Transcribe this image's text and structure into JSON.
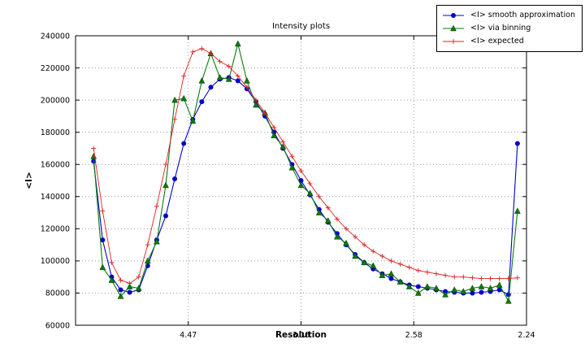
{
  "chart_data": {
    "type": "line",
    "title": "Intensity plots",
    "xlabel": "Resolution",
    "ylabel": "<I>",
    "grid": true,
    "legend_position": "top-right",
    "xlim": [
      0,
      0.2
    ],
    "ylim": [
      60000,
      240000
    ],
    "yticks": [
      {
        "value": 60000,
        "label": "60000"
      },
      {
        "value": 80000,
        "label": "80000"
      },
      {
        "value": 100000,
        "label": "100000"
      },
      {
        "value": 120000,
        "label": "120000"
      },
      {
        "value": 140000,
        "label": "140000"
      },
      {
        "value": 160000,
        "label": "160000"
      },
      {
        "value": 180000,
        "label": "180000"
      },
      {
        "value": 200000,
        "label": "200000"
      },
      {
        "value": 220000,
        "label": "220000"
      },
      {
        "value": 240000,
        "label": "240000"
      }
    ],
    "xticks": [
      {
        "pos": 0.05,
        "label": "4.47"
      },
      {
        "pos": 0.1,
        "label": "3.16"
      },
      {
        "pos": 0.15,
        "label": "2.58"
      },
      {
        "pos": 0.2,
        "label": "2.24"
      }
    ],
    "x": [
      0.008,
      0.012,
      0.016,
      0.02,
      0.024,
      0.028,
      0.032,
      0.036,
      0.04,
      0.044,
      0.048,
      0.052,
      0.056,
      0.06,
      0.064,
      0.068,
      0.072,
      0.076,
      0.08,
      0.084,
      0.088,
      0.092,
      0.096,
      0.1,
      0.104,
      0.108,
      0.112,
      0.116,
      0.12,
      0.124,
      0.128,
      0.132,
      0.136,
      0.14,
      0.144,
      0.148,
      0.152,
      0.156,
      0.16,
      0.164,
      0.168,
      0.172,
      0.176,
      0.18,
      0.184,
      0.188,
      0.192,
      0.196
    ],
    "series": [
      {
        "name": "<I> smooth approximation",
        "color": "#0000cc",
        "marker": "circle",
        "values": [
          162000,
          113000,
          90000,
          82000,
          80500,
          82000,
          97000,
          113000,
          128000,
          151000,
          173000,
          188000,
          199000,
          208000,
          213000,
          214000,
          212000,
          207000,
          199000,
          190000,
          180000,
          170000,
          160000,
          150000,
          141000,
          132000,
          124000,
          117000,
          110000,
          104000,
          99000,
          95000,
          92000,
          89000,
          87000,
          85000,
          84000,
          83000,
          82000,
          81000,
          80500,
          80000,
          80000,
          80500,
          81000,
          82000,
          79000,
          173000
        ]
      },
      {
        "name": "<I> via binning",
        "color": "#0b7a0b",
        "marker": "triangle",
        "values": [
          165000,
          96000,
          88000,
          78000,
          84000,
          83000,
          100000,
          112000,
          147000,
          200000,
          201000,
          187000,
          212000,
          229000,
          214000,
          213000,
          235000,
          212000,
          197000,
          192000,
          178000,
          171000,
          158000,
          147000,
          142000,
          130000,
          125000,
          115000,
          111000,
          103000,
          99000,
          97000,
          91000,
          92000,
          87000,
          84000,
          80000,
          84000,
          83000,
          79000,
          82000,
          81000,
          83000,
          84000,
          83000,
          85000,
          75000,
          131000
        ]
      },
      {
        "name": "<I> expected",
        "color": "#e02020",
        "marker": "plus",
        "values": [
          170000,
          131000,
          99000,
          88000,
          86000,
          90000,
          110000,
          134000,
          160000,
          188000,
          215000,
          230000,
          232000,
          229000,
          224000,
          221000,
          215000,
          208000,
          200000,
          192000,
          183000,
          174000,
          165000,
          156000,
          148000,
          140000,
          133000,
          126000,
          120000,
          115000,
          110000,
          106000,
          103000,
          100000,
          98000,
          96000,
          94000,
          93000,
          92000,
          91000,
          90000,
          90000,
          89500,
          89000,
          89000,
          89000,
          89000,
          89500
        ]
      }
    ]
  }
}
